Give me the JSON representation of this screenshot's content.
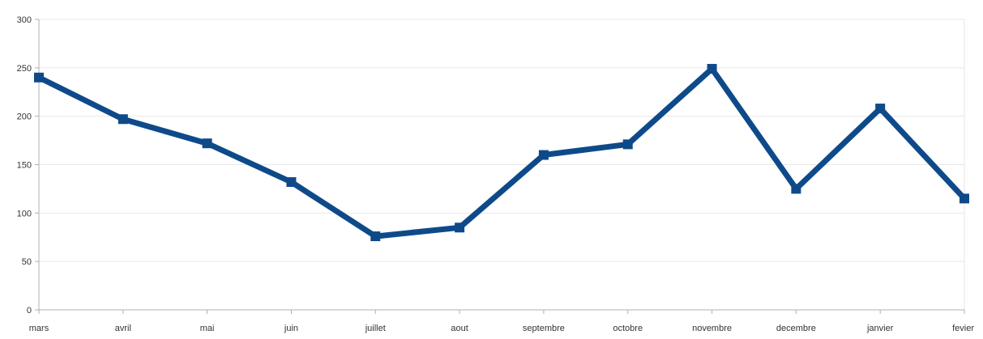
{
  "chart_data": {
    "type": "line",
    "categories": [
      "mars",
      "avril",
      "mai",
      "juin",
      "juillet",
      "aout",
      "septembre",
      "octobre",
      "novembre",
      "decembre",
      "janvier",
      "fevier"
    ],
    "series": [
      {
        "values": [
          240,
          197,
          172,
          132,
          76,
          85,
          160,
          171,
          249,
          125,
          208,
          115
        ]
      }
    ],
    "title": "",
    "xlabel": "",
    "ylabel": "",
    "ylim": [
      0,
      300
    ],
    "yticks": [
      0,
      50,
      100,
      150,
      200,
      250,
      300
    ],
    "grid": true,
    "line_color": "#0e4a8a",
    "grid_color": "#e8e8e8"
  }
}
